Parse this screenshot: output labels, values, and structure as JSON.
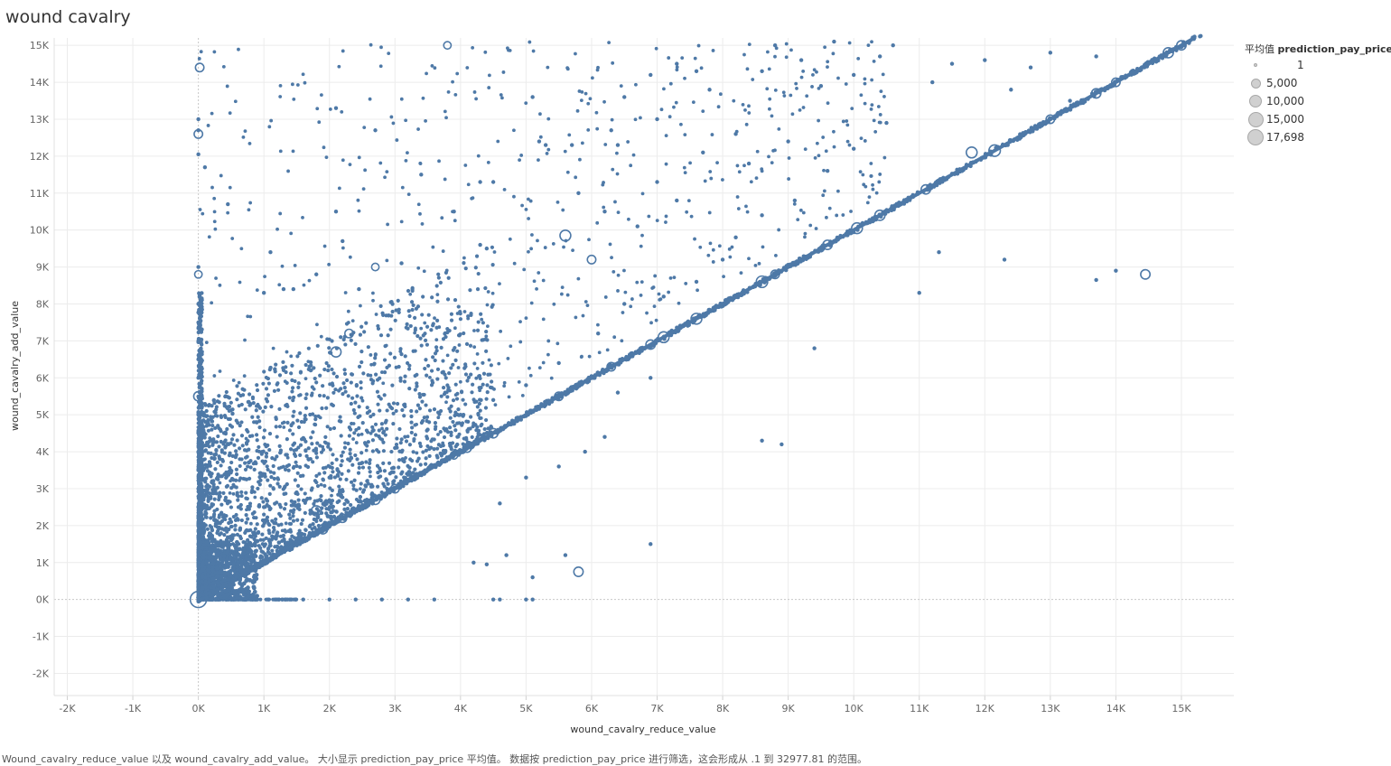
{
  "title": "wound cavalry",
  "caption": "Wound_cavalry_reduce_value 以及 wound_cavalry_add_value。 大小显示 prediction_pay_price 平均值。 数据按 prediction_pay_price 进行筛选，这会形成从 .1 到 32977.81 的范围。",
  "legend": {
    "title_prefix": "平均值",
    "title_field": "prediction_pay_price",
    "items": [
      {
        "label": "1",
        "value": 1
      },
      {
        "label": "5,000",
        "value": 5000
      },
      {
        "label": "10,000",
        "value": 10000
      },
      {
        "label": "15,000",
        "value": 15000
      },
      {
        "label": "17,698",
        "value": 17698
      }
    ]
  },
  "colors": {
    "mark": "#4e79a7",
    "grid": "#ececec",
    "zero_line": "#c8c8c8",
    "legend_fill": "#d0d0d0"
  },
  "chart_data": {
    "type": "scatter",
    "xlabel": "wound_cavalry_reduce_value",
    "ylabel": "wound_cavalry_add_value",
    "xlim": [
      -2200,
      15800
    ],
    "ylim": [
      -2600,
      15200
    ],
    "x_ticks": [
      {
        "value": -2000,
        "label": "-2K"
      },
      {
        "value": -1000,
        "label": "-1K"
      },
      {
        "value": 0,
        "label": "0K"
      },
      {
        "value": 1000,
        "label": "1K"
      },
      {
        "value": 2000,
        "label": "2K"
      },
      {
        "value": 3000,
        "label": "3K"
      },
      {
        "value": 4000,
        "label": "4K"
      },
      {
        "value": 5000,
        "label": "5K"
      },
      {
        "value": 6000,
        "label": "6K"
      },
      {
        "value": 7000,
        "label": "7K"
      },
      {
        "value": 8000,
        "label": "8K"
      },
      {
        "value": 9000,
        "label": "9K"
      },
      {
        "value": 10000,
        "label": "10K"
      },
      {
        "value": 11000,
        "label": "11K"
      },
      {
        "value": 12000,
        "label": "12K"
      },
      {
        "value": 13000,
        "label": "13K"
      },
      {
        "value": 14000,
        "label": "14K"
      },
      {
        "value": 15000,
        "label": "15K"
      }
    ],
    "y_ticks": [
      {
        "value": -2000,
        "label": "-2K"
      },
      {
        "value": -1000,
        "label": "-1K"
      },
      {
        "value": 0,
        "label": "0K"
      },
      {
        "value": 1000,
        "label": "1K"
      },
      {
        "value": 2000,
        "label": "2K"
      },
      {
        "value": 3000,
        "label": "3K"
      },
      {
        "value": 4000,
        "label": "4K"
      },
      {
        "value": 5000,
        "label": "5K"
      },
      {
        "value": 6000,
        "label": "6K"
      },
      {
        "value": 7000,
        "label": "7K"
      },
      {
        "value": 8000,
        "label": "8K"
      },
      {
        "value": 9000,
        "label": "9K"
      },
      {
        "value": 10000,
        "label": "10K"
      },
      {
        "value": 11000,
        "label": "11K"
      },
      {
        "value": 12000,
        "label": "12K"
      },
      {
        "value": 13000,
        "label": "13K"
      },
      {
        "value": 14000,
        "label": "14K"
      },
      {
        "value": 15000,
        "label": "15K"
      }
    ],
    "grid": true,
    "legend_placement": "top-right",
    "size_field": "prediction_pay_price",
    "series": [
      {
        "points": [
          [
            0,
            0,
            17000
          ],
          [
            20,
            14400,
            3000
          ],
          [
            0,
            13000,
            1
          ],
          [
            0,
            12700,
            1
          ],
          [
            0,
            12600,
            3000
          ],
          [
            0,
            12050,
            1
          ],
          [
            0,
            8800,
            2000
          ],
          [
            100,
            11700,
            1
          ],
          [
            450,
            10700,
            1
          ],
          [
            1100,
            9400,
            1
          ],
          [
            1000,
            8300,
            1
          ],
          [
            1300,
            8400,
            1
          ],
          [
            1450,
            8400,
            1
          ],
          [
            1800,
            8800,
            1
          ],
          [
            2100,
            13300,
            1
          ],
          [
            2100,
            10500,
            1
          ],
          [
            2200,
            9700,
            1
          ],
          [
            2450,
            8400,
            1
          ],
          [
            2700,
            12700,
            1
          ],
          [
            2700,
            9000,
            2000
          ],
          [
            3100,
            9100,
            1
          ],
          [
            3400,
            11500,
            1
          ],
          [
            3800,
            15000,
            2000
          ],
          [
            3900,
            10500,
            1
          ],
          [
            4300,
            11300,
            1
          ],
          [
            4500,
            11300,
            1
          ],
          [
            4300,
            9600,
            1
          ],
          [
            4400,
            9500,
            1
          ],
          [
            5100,
            13600,
            1
          ],
          [
            5200,
            12400,
            1
          ],
          [
            5300,
            12300,
            1
          ],
          [
            5700,
            12300,
            1
          ],
          [
            5600,
            9850,
            6000
          ],
          [
            6000,
            9200,
            3000
          ],
          [
            5800,
            11000,
            1
          ],
          [
            6300,
            12700,
            1
          ],
          [
            6400,
            12300,
            1
          ],
          [
            6500,
            13600,
            1
          ],
          [
            6900,
            14200,
            1
          ],
          [
            7000,
            13000,
            1
          ],
          [
            7300,
            14500,
            1
          ],
          [
            7600,
            14300,
            1
          ],
          [
            7800,
            13800,
            1
          ],
          [
            8200,
            12600,
            1
          ],
          [
            8600,
            14300,
            1
          ],
          [
            8800,
            15000,
            1
          ],
          [
            9200,
            14600,
            1
          ],
          [
            9500,
            13900,
            1
          ],
          [
            9700,
            15100,
            1
          ],
          [
            10000,
            14200,
            1
          ],
          [
            10400,
            14700,
            1
          ],
          [
            10600,
            15000,
            1
          ],
          [
            11200,
            14000,
            1
          ],
          [
            11500,
            14500,
            1
          ],
          [
            12000,
            14600,
            1
          ],
          [
            12400,
            13800,
            1
          ],
          [
            12700,
            14400,
            1
          ],
          [
            13000,
            14800,
            1
          ],
          [
            13300,
            13500,
            1
          ],
          [
            13700,
            14700,
            1
          ],
          [
            11800,
            12100,
            6000
          ],
          [
            11300,
            9400,
            1
          ],
          [
            12300,
            9200,
            1
          ],
          [
            11000,
            8300,
            1
          ],
          [
            13700,
            8650,
            1
          ],
          [
            14000,
            8900,
            1
          ],
          [
            14450,
            8800,
            4000
          ],
          [
            9400,
            6800,
            1
          ],
          [
            8600,
            4300,
            1
          ],
          [
            8900,
            4200,
            1
          ],
          [
            6900,
            1500,
            1
          ],
          [
            5600,
            1200,
            1
          ],
          [
            5800,
            750,
            4000
          ],
          [
            5100,
            600,
            1
          ],
          [
            4400,
            950,
            1
          ],
          [
            4200,
            1000,
            1
          ],
          [
            4700,
            1200,
            1
          ],
          [
            4600,
            2600,
            1
          ],
          [
            5000,
            3300,
            1
          ],
          [
            5500,
            3600,
            1
          ],
          [
            5900,
            4000,
            1
          ],
          [
            6200,
            4400,
            1
          ],
          [
            6400,
            5600,
            1
          ],
          [
            6900,
            6000,
            1
          ],
          [
            7100,
            8200,
            1
          ],
          [
            7600,
            8600,
            1
          ],
          [
            8000,
            9200,
            1
          ],
          [
            8200,
            9800,
            1
          ],
          [
            8600,
            10400,
            1
          ],
          [
            9100,
            10800,
            1
          ],
          [
            9600,
            11600,
            1
          ],
          [
            10000,
            12200,
            1
          ],
          [
            10500,
            12900,
            1
          ],
          [
            9000,
            12400,
            1
          ],
          [
            8400,
            11800,
            1
          ],
          [
            7300,
            10800,
            1
          ],
          [
            6700,
            10100,
            1
          ],
          [
            6200,
            10500,
            1
          ],
          [
            7000,
            11300,
            1
          ],
          [
            7700,
            12100,
            1
          ],
          [
            6500,
            8000,
            1
          ],
          [
            6100,
            7200,
            1
          ],
          [
            5500,
            6400,
            1
          ],
          [
            5000,
            5800,
            1
          ],
          [
            4500,
            5400,
            1
          ],
          [
            4000,
            5000,
            1
          ],
          [
            3500,
            4600,
            1
          ],
          [
            3000,
            4100,
            1
          ],
          [
            2500,
            3700,
            1
          ],
          [
            2000,
            3300,
            1
          ],
          [
            1500,
            2900,
            1
          ],
          [
            1000,
            2500,
            1
          ],
          [
            500,
            2100,
            1
          ],
          [
            1800,
            2400,
            5000
          ],
          [
            2100,
            6700,
            5000
          ],
          [
            2300,
            7200,
            3000
          ],
          [
            1500,
            1500,
            1
          ],
          [
            2000,
            2000,
            1
          ],
          [
            2600,
            2600,
            1
          ],
          [
            3300,
            3300,
            1
          ],
          [
            4000,
            4000,
            1
          ],
          [
            4700,
            4700,
            1
          ],
          [
            5300,
            5300,
            1
          ],
          [
            6000,
            6000,
            1
          ],
          [
            6700,
            6700,
            1
          ],
          [
            7400,
            7400,
            1
          ],
          [
            8000,
            8000,
            1
          ],
          [
            8900,
            8900,
            1
          ],
          [
            9700,
            9700,
            1
          ],
          [
            10500,
            10500,
            1
          ],
          [
            11300,
            11300,
            1
          ],
          [
            12500,
            12500,
            1
          ],
          [
            13300,
            13300,
            1
          ],
          [
            14200,
            14200,
            1
          ]
        ],
        "diagonal_bubbles": [
          [
            1900,
            1900,
            4000
          ],
          [
            2200,
            2200,
            3000
          ],
          [
            2700,
            2700,
            4000
          ],
          [
            3000,
            3000,
            3000
          ],
          [
            3900,
            3900,
            2000
          ],
          [
            4100,
            4100,
            3000
          ],
          [
            4500,
            4500,
            4000
          ],
          [
            5500,
            5500,
            3000
          ],
          [
            6300,
            6300,
            3000
          ],
          [
            6900,
            6900,
            4000
          ],
          [
            7100,
            7100,
            6000
          ],
          [
            7600,
            7600,
            6000
          ],
          [
            8600,
            8600,
            7000
          ],
          [
            8800,
            8800,
            3000
          ],
          [
            9600,
            9600,
            4000
          ],
          [
            10050,
            10050,
            6000
          ],
          [
            10400,
            10400,
            5000
          ],
          [
            11100,
            11100,
            4000
          ],
          [
            12150,
            12150,
            7000
          ],
          [
            13000,
            13000,
            3000
          ],
          [
            13700,
            13700,
            4000
          ],
          [
            14000,
            14000,
            3000
          ],
          [
            14800,
            14800,
            5000
          ],
          [
            15000,
            15000,
            4000
          ]
        ],
        "axis_points": [
          [
            0,
            500,
            1
          ],
          [
            0,
            1000,
            1
          ],
          [
            0,
            1500,
            1
          ],
          [
            0,
            2000,
            1
          ],
          [
            0,
            2500,
            1
          ],
          [
            0,
            3000,
            1
          ],
          [
            0,
            3500,
            1
          ],
          [
            0,
            4000,
            1
          ],
          [
            0,
            4500,
            1
          ],
          [
            0,
            5000,
            1
          ],
          [
            0,
            5500,
            4000
          ],
          [
            0,
            6000,
            1
          ],
          [
            0,
            6500,
            1
          ],
          [
            0,
            7000,
            1
          ],
          [
            0,
            7500,
            1
          ],
          [
            0,
            8000,
            1
          ],
          [
            0,
            9000,
            1
          ],
          [
            200,
            0,
            1
          ],
          [
            500,
            0,
            1
          ],
          [
            800,
            0,
            1
          ],
          [
            1200,
            0,
            1
          ],
          [
            1600,
            0,
            1
          ],
          [
            2000,
            0,
            1
          ],
          [
            2400,
            0,
            1
          ],
          [
            2800,
            0,
            1
          ],
          [
            3200,
            0,
            1
          ],
          [
            3600,
            0,
            1
          ],
          [
            4500,
            0,
            1
          ],
          [
            4600,
            0,
            1
          ],
          [
            5000,
            0,
            1
          ],
          [
            5100,
            0,
            1
          ]
        ]
      }
    ],
    "density_note": "dense cloud between x 0-3500 and y 0-6000 with heavy concentration near the diagonal y=x"
  }
}
